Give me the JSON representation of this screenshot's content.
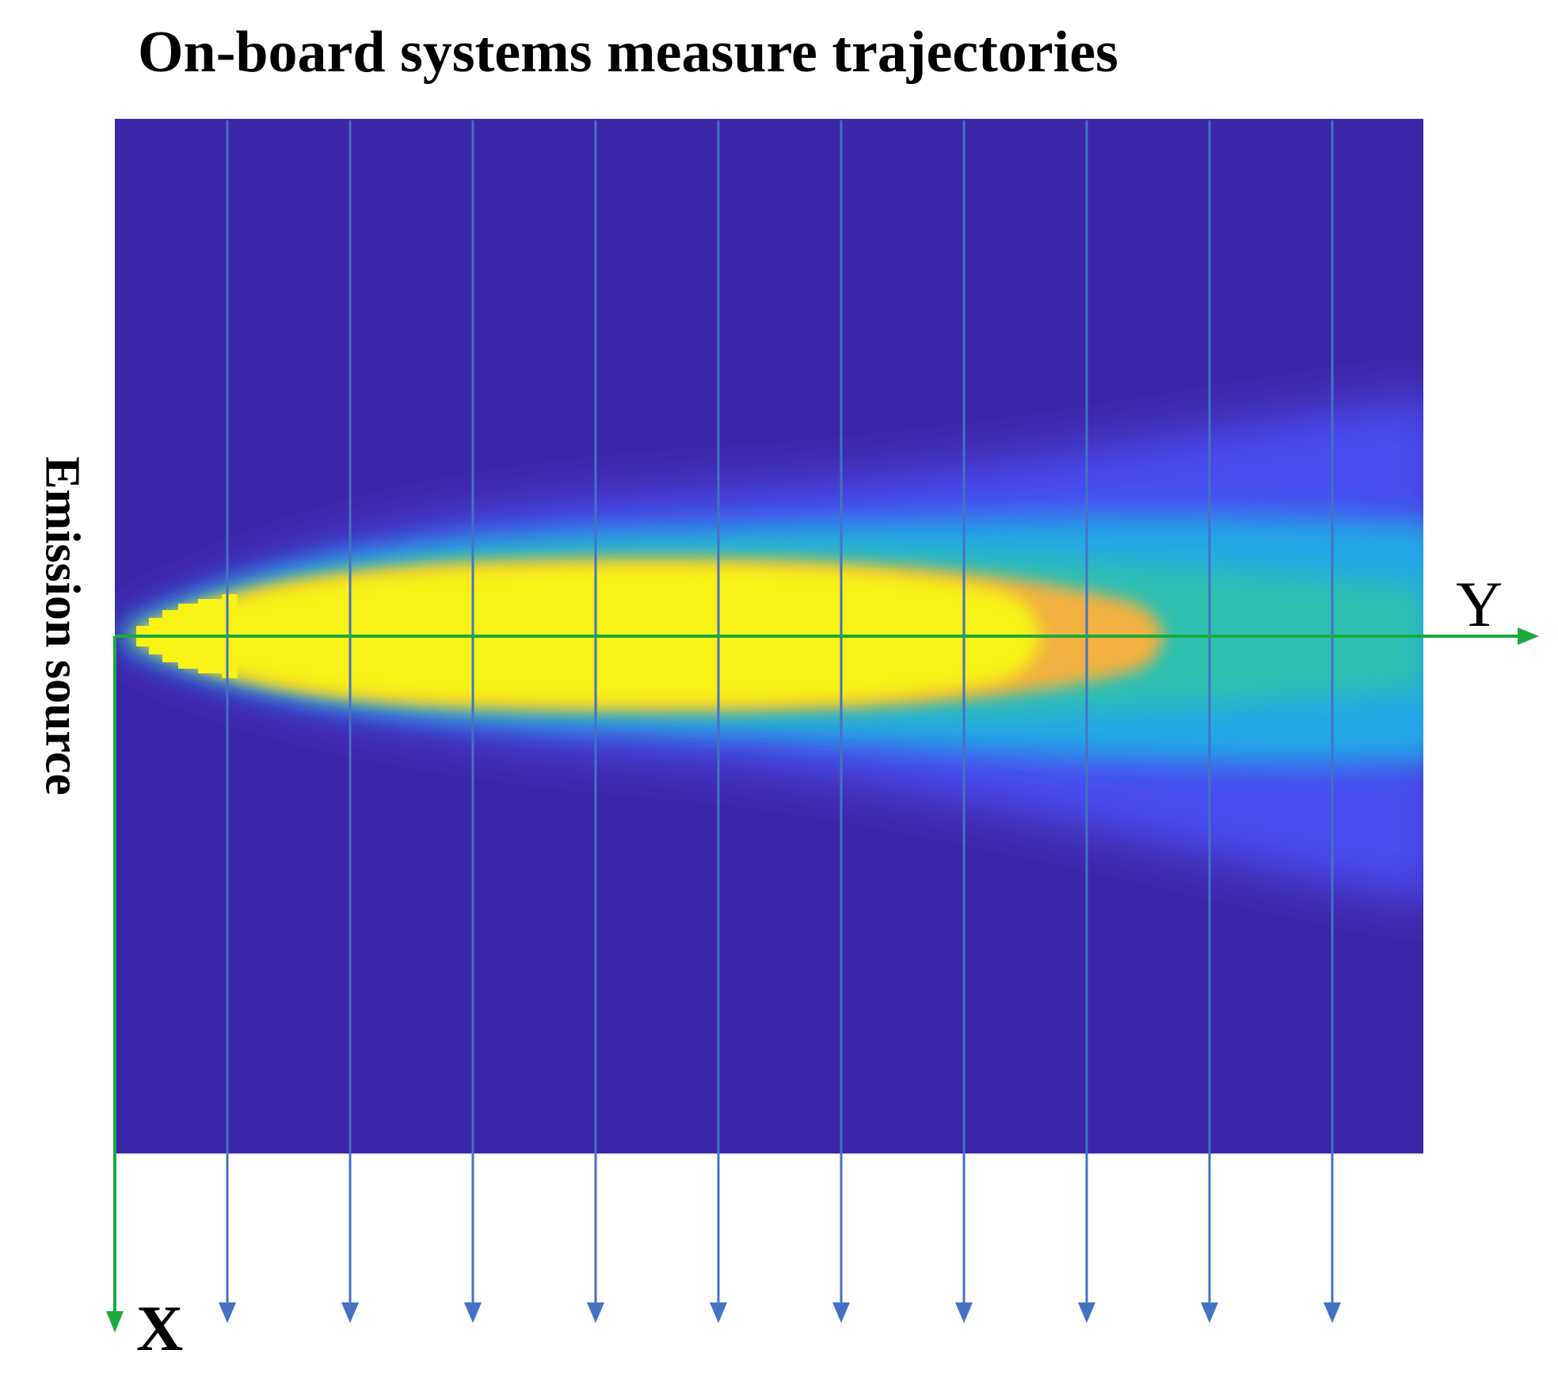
{
  "figure": {
    "title": "On-board systems measure trajectories",
    "source_label": "Emission source",
    "x_axis_label": "X",
    "y_axis_label": "Y"
  },
  "trajectories": {
    "count": 10,
    "direction": "down",
    "color": "#4472c4"
  },
  "plume_field": {
    "colormap": "parula",
    "colors": {
      "background": "#3e26a8",
      "low": "#4a4ef0",
      "mid": "#22a8e6",
      "teal": "#2dc0b0",
      "orange": "#f2b13f",
      "peak": "#f8f217"
    }
  },
  "axes_color": "#1aaa3c"
}
